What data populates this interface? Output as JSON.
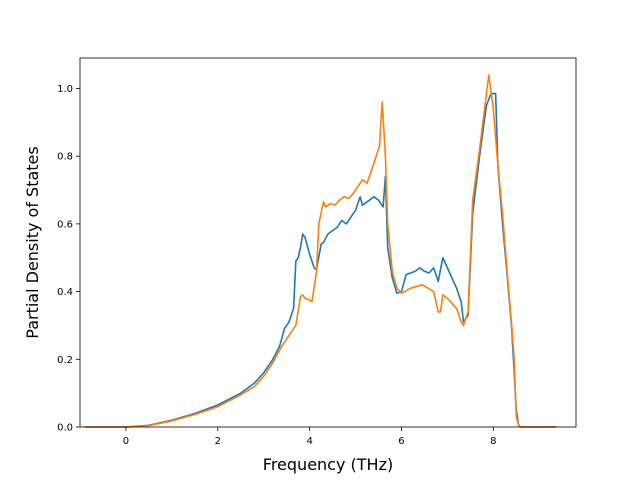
{
  "chart_data": {
    "type": "line",
    "title": "",
    "xlabel": "Frequency (THz)",
    "ylabel": "Partial Density of States",
    "xlim": [
      -1.0,
      9.8
    ],
    "ylim": [
      0.0,
      1.09
    ],
    "xticks": [
      0,
      2,
      4,
      6,
      8
    ],
    "yticks": [
      0.0,
      0.2,
      0.4,
      0.6,
      0.8,
      1.0
    ],
    "xtick_labels": [
      "0",
      "2",
      "4",
      "6",
      "8"
    ],
    "ytick_labels": [
      "0.0",
      "0.2",
      "0.4",
      "0.6",
      "0.8",
      "1.0"
    ],
    "grid": false,
    "legend": "none",
    "series": [
      {
        "color": "#1f77b4",
        "points": [
          [
            -0.88,
            0
          ],
          [
            0,
            0
          ],
          [
            0.5,
            0.005
          ],
          [
            1,
            0.02
          ],
          [
            1.5,
            0.04
          ],
          [
            2,
            0.065
          ],
          [
            2.5,
            0.1
          ],
          [
            2.8,
            0.13
          ],
          [
            3.0,
            0.16
          ],
          [
            3.2,
            0.2
          ],
          [
            3.35,
            0.24
          ],
          [
            3.45,
            0.29
          ],
          [
            3.55,
            0.31
          ],
          [
            3.65,
            0.35
          ],
          [
            3.7,
            0.49
          ],
          [
            3.75,
            0.5
          ],
          [
            3.8,
            0.53
          ],
          [
            3.85,
            0.57
          ],
          [
            3.9,
            0.56
          ],
          [
            4.0,
            0.51
          ],
          [
            4.1,
            0.47
          ],
          [
            4.15,
            0.465
          ],
          [
            4.25,
            0.54
          ],
          [
            4.3,
            0.545
          ],
          [
            4.4,
            0.57
          ],
          [
            4.5,
            0.58
          ],
          [
            4.6,
            0.59
          ],
          [
            4.7,
            0.61
          ],
          [
            4.8,
            0.6
          ],
          [
            4.9,
            0.62
          ],
          [
            5.0,
            0.64
          ],
          [
            5.1,
            0.68
          ],
          [
            5.15,
            0.655
          ],
          [
            5.3,
            0.67
          ],
          [
            5.4,
            0.68
          ],
          [
            5.5,
            0.67
          ],
          [
            5.6,
            0.65
          ],
          [
            5.65,
            0.74
          ],
          [
            5.7,
            0.53
          ],
          [
            5.8,
            0.44
          ],
          [
            5.9,
            0.395
          ],
          [
            6.0,
            0.4
          ],
          [
            6.1,
            0.45
          ],
          [
            6.3,
            0.46
          ],
          [
            6.4,
            0.47
          ],
          [
            6.5,
            0.46
          ],
          [
            6.6,
            0.455
          ],
          [
            6.7,
            0.47
          ],
          [
            6.8,
            0.43
          ],
          [
            6.9,
            0.5
          ],
          [
            7.0,
            0.47
          ],
          [
            7.1,
            0.44
          ],
          [
            7.2,
            0.41
          ],
          [
            7.3,
            0.37
          ],
          [
            7.35,
            0.31
          ],
          [
            7.45,
            0.33
          ],
          [
            7.55,
            0.63
          ],
          [
            7.7,
            0.8
          ],
          [
            7.85,
            0.95
          ],
          [
            7.95,
            0.985
          ],
          [
            8.05,
            0.985
          ],
          [
            8.1,
            0.77
          ],
          [
            8.2,
            0.6
          ],
          [
            8.3,
            0.45
          ],
          [
            8.4,
            0.29
          ],
          [
            8.45,
            0.17
          ],
          [
            8.5,
            0.05
          ],
          [
            8.55,
            0.005
          ],
          [
            8.6,
            0
          ],
          [
            9.35,
            0
          ]
        ]
      },
      {
        "color": "#ff7f0e",
        "points": [
          [
            -0.88,
            0
          ],
          [
            0,
            0
          ],
          [
            0.5,
            0.004
          ],
          [
            1,
            0.018
          ],
          [
            1.5,
            0.037
          ],
          [
            2,
            0.06
          ],
          [
            2.5,
            0.095
          ],
          [
            2.8,
            0.12
          ],
          [
            3.0,
            0.15
          ],
          [
            3.2,
            0.19
          ],
          [
            3.4,
            0.24
          ],
          [
            3.55,
            0.27
          ],
          [
            3.7,
            0.3
          ],
          [
            3.8,
            0.385
          ],
          [
            3.85,
            0.39
          ],
          [
            3.9,
            0.38
          ],
          [
            4.0,
            0.375
          ],
          [
            4.05,
            0.37
          ],
          [
            4.15,
            0.46
          ],
          [
            4.2,
            0.6
          ],
          [
            4.3,
            0.665
          ],
          [
            4.35,
            0.65
          ],
          [
            4.45,
            0.66
          ],
          [
            4.55,
            0.655
          ],
          [
            4.65,
            0.67
          ],
          [
            4.75,
            0.68
          ],
          [
            4.85,
            0.675
          ],
          [
            4.95,
            0.69
          ],
          [
            5.05,
            0.71
          ],
          [
            5.15,
            0.73
          ],
          [
            5.25,
            0.72
          ],
          [
            5.35,
            0.76
          ],
          [
            5.45,
            0.8
          ],
          [
            5.52,
            0.83
          ],
          [
            5.58,
            0.96
          ],
          [
            5.65,
            0.8
          ],
          [
            5.7,
            0.6
          ],
          [
            5.8,
            0.46
          ],
          [
            5.9,
            0.41
          ],
          [
            6.0,
            0.395
          ],
          [
            6.2,
            0.41
          ],
          [
            6.45,
            0.42
          ],
          [
            6.7,
            0.4
          ],
          [
            6.8,
            0.34
          ],
          [
            6.85,
            0.34
          ],
          [
            6.9,
            0.39
          ],
          [
            7.0,
            0.38
          ],
          [
            7.1,
            0.365
          ],
          [
            7.2,
            0.35
          ],
          [
            7.3,
            0.31
          ],
          [
            7.35,
            0.3
          ],
          [
            7.45,
            0.34
          ],
          [
            7.55,
            0.67
          ],
          [
            7.7,
            0.82
          ],
          [
            7.8,
            0.93
          ],
          [
            7.9,
            1.04
          ],
          [
            8.0,
            0.94
          ],
          [
            8.1,
            0.77
          ],
          [
            8.2,
            0.63
          ],
          [
            8.3,
            0.46
          ],
          [
            8.4,
            0.3
          ],
          [
            8.45,
            0.21
          ],
          [
            8.5,
            0.03
          ],
          [
            8.55,
            0.005
          ],
          [
            8.6,
            0
          ],
          [
            9.35,
            0
          ]
        ]
      }
    ]
  }
}
